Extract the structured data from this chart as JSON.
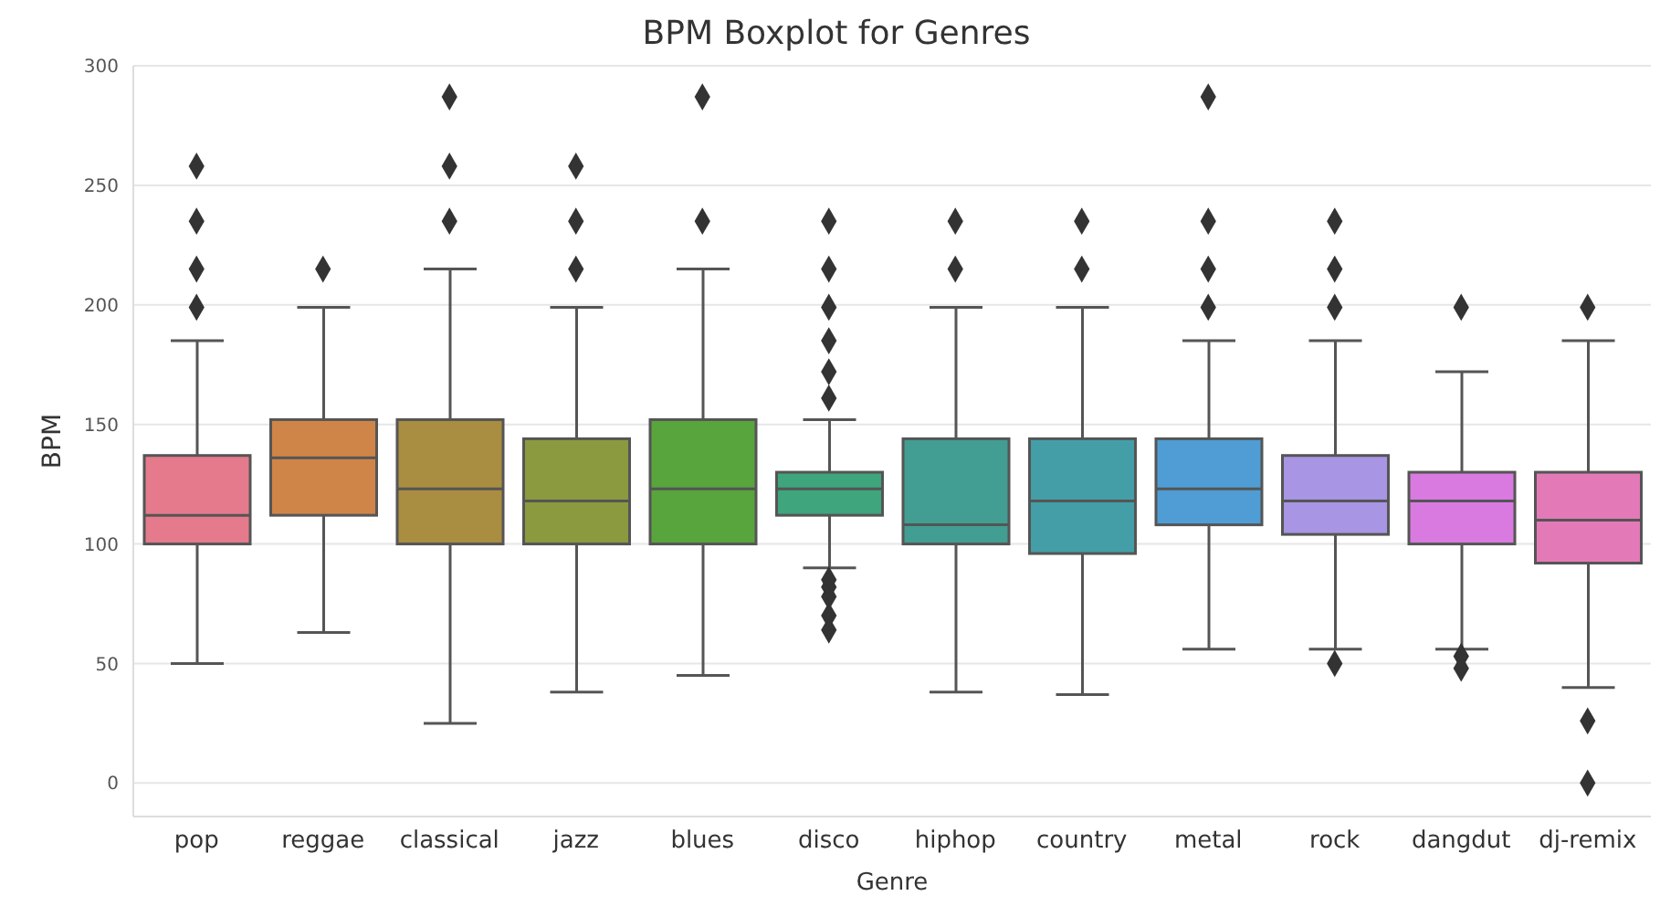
{
  "chart_data": {
    "type": "box",
    "title": "BPM Boxplot for Genres",
    "xlabel": "Genre",
    "ylabel": "BPM",
    "categories": [
      "pop",
      "reggae",
      "classical",
      "jazz",
      "blues",
      "disco",
      "hiphop",
      "country",
      "metal",
      "rock",
      "dangdut",
      "dj-remix"
    ],
    "colors": [
      "#e57a8d",
      "#d08548",
      "#a98d41",
      "#8b9a3f",
      "#58a43d",
      "#3ea57c",
      "#429d92",
      "#449ea8",
      "#4f9dd4",
      "#a895e3",
      "#d97ae1",
      "#e479b8"
    ],
    "boxes": [
      {
        "low": 50,
        "q1": 100,
        "median": 112,
        "q3": 137,
        "high": 185,
        "outliers": [
          199,
          215,
          235,
          258
        ]
      },
      {
        "low": 63,
        "q1": 112,
        "median": 136,
        "q3": 152,
        "high": 199,
        "outliers": [
          215
        ]
      },
      {
        "low": 25,
        "q1": 100,
        "median": 123,
        "q3": 152,
        "high": 215,
        "outliers": [
          235,
          258,
          287
        ]
      },
      {
        "low": 38,
        "q1": 100,
        "median": 118,
        "q3": 144,
        "high": 199,
        "outliers": [
          215,
          235,
          258
        ]
      },
      {
        "low": 45,
        "q1": 100,
        "median": 123,
        "q3": 152,
        "high": 215,
        "outliers": [
          235,
          287
        ]
      },
      {
        "low": 90,
        "q1": 112,
        "median": 123,
        "q3": 130,
        "high": 152,
        "outliers": [
          64,
          70,
          78,
          82,
          85,
          161,
          172,
          185,
          199,
          215,
          235
        ]
      },
      {
        "low": 38,
        "q1": 100,
        "median": 108,
        "q3": 144,
        "high": 199,
        "outliers": [
          215,
          235
        ]
      },
      {
        "low": 37,
        "q1": 96,
        "median": 118,
        "q3": 144,
        "high": 199,
        "outliers": [
          215,
          235
        ]
      },
      {
        "low": 56,
        "q1": 108,
        "median": 123,
        "q3": 144,
        "high": 185,
        "outliers": [
          199,
          215,
          235,
          287
        ]
      },
      {
        "low": 56,
        "q1": 104,
        "median": 118,
        "q3": 137,
        "high": 185,
        "outliers": [
          50,
          199,
          215,
          235
        ]
      },
      {
        "low": 56,
        "q1": 100,
        "median": 118,
        "q3": 130,
        "high": 172,
        "outliers": [
          48,
          53,
          199
        ]
      },
      {
        "low": 40,
        "q1": 92,
        "median": 110,
        "q3": 130,
        "high": 185,
        "outliers": [
          0,
          26,
          199
        ]
      }
    ],
    "ylim": [
      -14,
      300
    ],
    "yticks": [
      0,
      50,
      100,
      150,
      200,
      250,
      300
    ],
    "grid": "y",
    "marker": "diamond"
  }
}
